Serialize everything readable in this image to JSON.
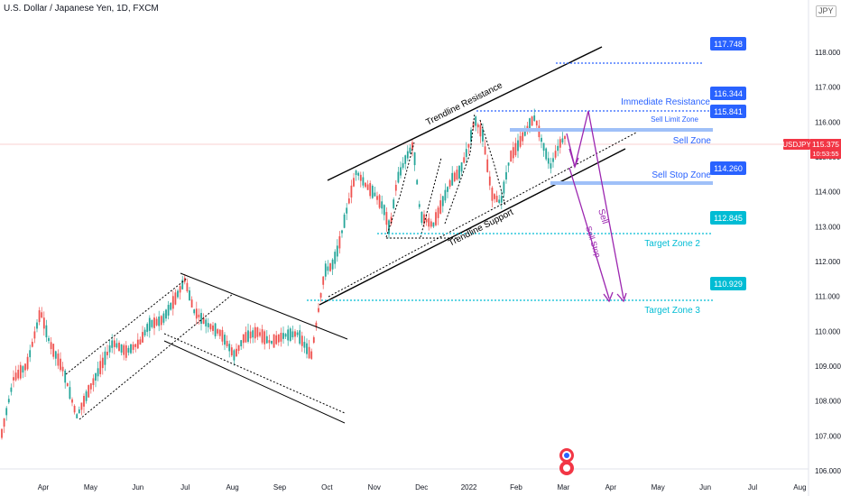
{
  "header": {
    "title": "U.S. Dollar / Japanese Yen, 1D, FXCM",
    "currency": "JPY"
  },
  "chart_data": {
    "type": "candlestick",
    "symbol": "USDJPY",
    "price_axis": {
      "ticks": [
        "106.000",
        "107.000",
        "108.000",
        "109.000",
        "110.000",
        "111.000",
        "112.000",
        "113.000",
        "114.000",
        "115.000",
        "116.000",
        "117.000",
        "118.000"
      ],
      "ylim": [
        106.0,
        118.55
      ]
    },
    "time_axis": {
      "ticks": [
        "Apr",
        "May",
        "Jun",
        "Jul",
        "Aug",
        "Sep",
        "Oct",
        "Nov",
        "Dec",
        "2022",
        "Feb",
        "Mar",
        "Apr",
        "May",
        "Jun",
        "Jul",
        "Aug"
      ]
    },
    "current_price": {
      "value": "115.375",
      "countdown": "10:53:55",
      "symbol": "USDJPY",
      "color": "#f23645"
    },
    "price_labels": [
      {
        "value": "117.748",
        "color": "#2962ff"
      },
      {
        "value": "116.344",
        "color": "#2962ff"
      },
      {
        "value": "115.841",
        "color": "#2962ff"
      },
      {
        "value": "114.260",
        "color": "#2962ff"
      },
      {
        "value": "112.845",
        "color": "#00bcd4"
      },
      {
        "value": "110.929",
        "color": "#00bcd4"
      }
    ],
    "annotations": {
      "immediate_resistance": "Immediate Resistance",
      "sell_limit_zone": "Sell Limit Zone",
      "sell_zone": "Sell Zone",
      "sell_stop_zone": "Sell Stop Zone",
      "target_zone_2": "Target Zone 2",
      "target_zone_3": "Target Zone 3",
      "trendline_resistance": "Trendline Resistance",
      "trendline_support": "Trendline Support",
      "sell": "Sell",
      "sell_stop": "Sell Stop"
    },
    "colors": {
      "up": "#26a69a",
      "down": "#ef5350",
      "label_blue": "#2962ff",
      "label_cyan": "#00bcd4",
      "arrow": "#9c27b0"
    }
  }
}
